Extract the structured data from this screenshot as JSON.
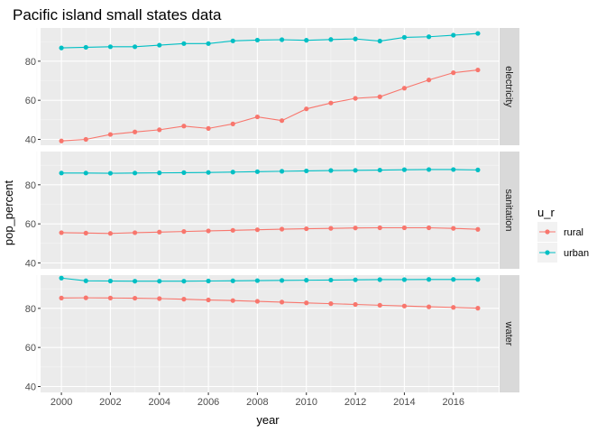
{
  "chart_data": {
    "type": "line",
    "title": "Pacific island small states data",
    "xlabel": "year",
    "ylabel": "pop_percent",
    "x": [
      2000,
      2001,
      2002,
      2003,
      2004,
      2005,
      2006,
      2007,
      2008,
      2009,
      2010,
      2011,
      2012,
      2013,
      2014,
      2015,
      2016,
      2017
    ],
    "xlim": [
      1999.15,
      2017.85
    ],
    "x_ticks": [
      2000,
      2002,
      2004,
      2006,
      2008,
      2010,
      2012,
      2014,
      2016
    ],
    "x_tick_labels": [
      "2000",
      "2002",
      "2004",
      "2006",
      "2008",
      "2010",
      "2012",
      "2014",
      "2016"
    ],
    "ylim": [
      37,
      97
    ],
    "y_ticks": [
      40,
      60,
      80
    ],
    "y_tick_labels": [
      "40",
      "60",
      "80"
    ],
    "grid": true,
    "legend": {
      "title": "u_r",
      "position": "right",
      "entries": [
        {
          "name": "rural",
          "color": "#F8766D"
        },
        {
          "name": "urban",
          "color": "#00BFC4"
        }
      ]
    },
    "facets": [
      {
        "label": "electricity",
        "series": [
          {
            "name": "rural",
            "color": "#F8766D",
            "values": [
              39.2,
              40.0,
              42.5,
              43.8,
              44.9,
              46.8,
              45.6,
              47.9,
              51.5,
              49.6,
              55.6,
              58.6,
              61.0,
              61.8,
              66.2,
              70.4,
              74.1,
              75.5
            ]
          },
          {
            "name": "urban",
            "color": "#00BFC4",
            "values": [
              86.8,
              87.1,
              87.4,
              87.4,
              88.2,
              89.0,
              89.0,
              90.4,
              90.8,
              91.0,
              90.7,
              91.1,
              91.4,
              90.3,
              92.2,
              92.5,
              93.3,
              94.2
            ]
          }
        ]
      },
      {
        "label": "sanitation",
        "series": [
          {
            "name": "rural",
            "color": "#F8766D",
            "values": [
              55.5,
              55.3,
              55.1,
              55.5,
              55.8,
              56.1,
              56.4,
              56.7,
              57.0,
              57.3,
              57.5,
              57.7,
              57.9,
              58.0,
              58.0,
              58.0,
              57.7,
              57.2
            ]
          },
          {
            "name": "urban",
            "color": "#00BFC4",
            "values": [
              86.0,
              86.0,
              85.9,
              86.0,
              86.1,
              86.2,
              86.3,
              86.5,
              86.7,
              86.9,
              87.1,
              87.3,
              87.4,
              87.5,
              87.7,
              87.8,
              87.8,
              87.6
            ]
          }
        ]
      },
      {
        "label": "water",
        "series": [
          {
            "name": "rural",
            "color": "#F8766D",
            "values": [
              85.3,
              85.4,
              85.3,
              85.2,
              85.0,
              84.7,
              84.3,
              84.0,
              83.6,
              83.2,
              82.8,
              82.4,
              82.0,
              81.6,
              81.2,
              80.8,
              80.5,
              80.1
            ]
          },
          {
            "name": "urban",
            "color": "#00BFC4",
            "values": [
              95.5,
              94.1,
              94.0,
              93.9,
              93.9,
              93.9,
              94.0,
              94.1,
              94.2,
              94.3,
              94.4,
              94.5,
              94.6,
              94.7,
              94.7,
              94.8,
              94.8,
              94.8
            ]
          }
        ]
      }
    ]
  }
}
